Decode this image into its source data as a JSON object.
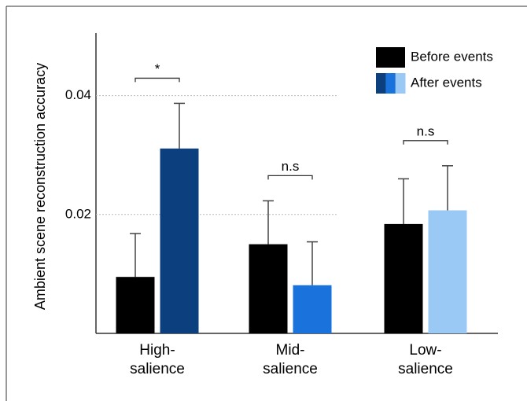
{
  "chart_data": {
    "type": "bar",
    "y_label": "Ambient scene reconstruction accuracy",
    "categories": [
      "High-\nsalience",
      "Mid-\nsalience",
      "Low-\nsalience"
    ],
    "series": [
      {
        "name": "Before events",
        "color": "#000000",
        "values": [
          0.0095,
          0.015,
          0.0184
        ],
        "errors": [
          0.0073,
          0.0073,
          0.0076
        ]
      },
      {
        "name": "After events",
        "colors": [
          "#0b3f7e",
          "#1a72dc",
          "#9bc9f6"
        ],
        "values": [
          0.0311,
          0.0081,
          0.0207
        ],
        "errors": [
          0.0076,
          0.0073,
          0.0075
        ]
      }
    ],
    "annotations": [
      "*",
      "n.s",
      "n.s"
    ],
    "ylim": [
      0,
      0.05
    ],
    "yticks": [
      0.02,
      0.04
    ],
    "grid": true,
    "legend": "top-right"
  }
}
